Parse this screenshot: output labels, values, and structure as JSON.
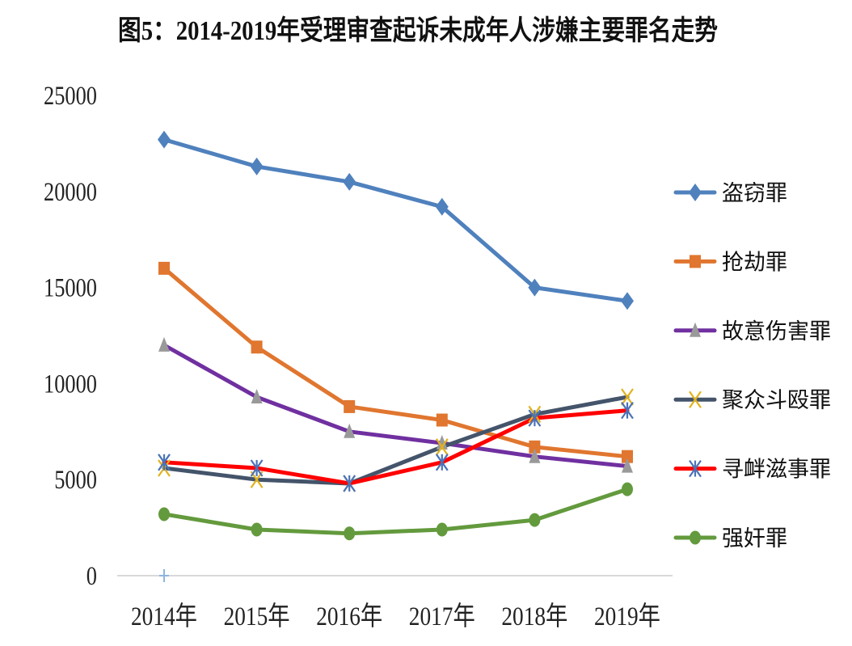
{
  "chart_data": {
    "type": "line",
    "title": "图5：2014-2019年受理审查起诉未成年人涉嫌主要罪名走势",
    "xlabel": "",
    "ylabel": "",
    "categories": [
      "2014年",
      "2015年",
      "2016年",
      "2017年",
      "2018年",
      "2019年"
    ],
    "ylim": [
      0,
      25000
    ],
    "yticks": [
      0,
      5000,
      10000,
      15000,
      20000,
      25000
    ],
    "ytick_labels": [
      "0",
      "5000",
      "10000",
      "15000",
      "20000",
      "25000"
    ],
    "grid": false,
    "legend_position": "right",
    "series": [
      {
        "name": "盗窃罪",
        "marker": "diamond",
        "line_color": "#4f81bd",
        "marker_color": "#4f81bd",
        "values": [
          22700,
          21300,
          20500,
          19200,
          15000,
          14300
        ]
      },
      {
        "name": "抢劫罪",
        "marker": "square",
        "line_color": "#e0762f",
        "marker_color": "#e0762f",
        "values": [
          16000,
          11900,
          8800,
          8100,
          6700,
          6200
        ]
      },
      {
        "name": "故意伤害罪",
        "marker": "triangle",
        "line_color": "#7030a0",
        "marker_color": "#999999",
        "values": [
          12000,
          9300,
          7500,
          6900,
          6200,
          5700
        ]
      },
      {
        "name": "聚众斗殴罪",
        "marker": "x",
        "line_color": "#44546a",
        "marker_color": "#e2b21c",
        "values": [
          5600,
          5000,
          4800,
          6700,
          8400,
          9300
        ]
      },
      {
        "name": "寻衅滋事罪",
        "marker": "star",
        "line_color": "#ff0000",
        "marker_color": "#4a72b8",
        "values": [
          5900,
          5600,
          4800,
          5900,
          8200,
          8600
        ]
      },
      {
        "name": "强奸罪",
        "marker": "circle",
        "line_color": "#639a3d",
        "marker_color": "#639a3d",
        "values": [
          3200,
          2400,
          2200,
          2400,
          2900,
          4500
        ]
      }
    ],
    "axis_color": "#d9d9d9",
    "origin_mark_color": "#8fb4e0"
  }
}
